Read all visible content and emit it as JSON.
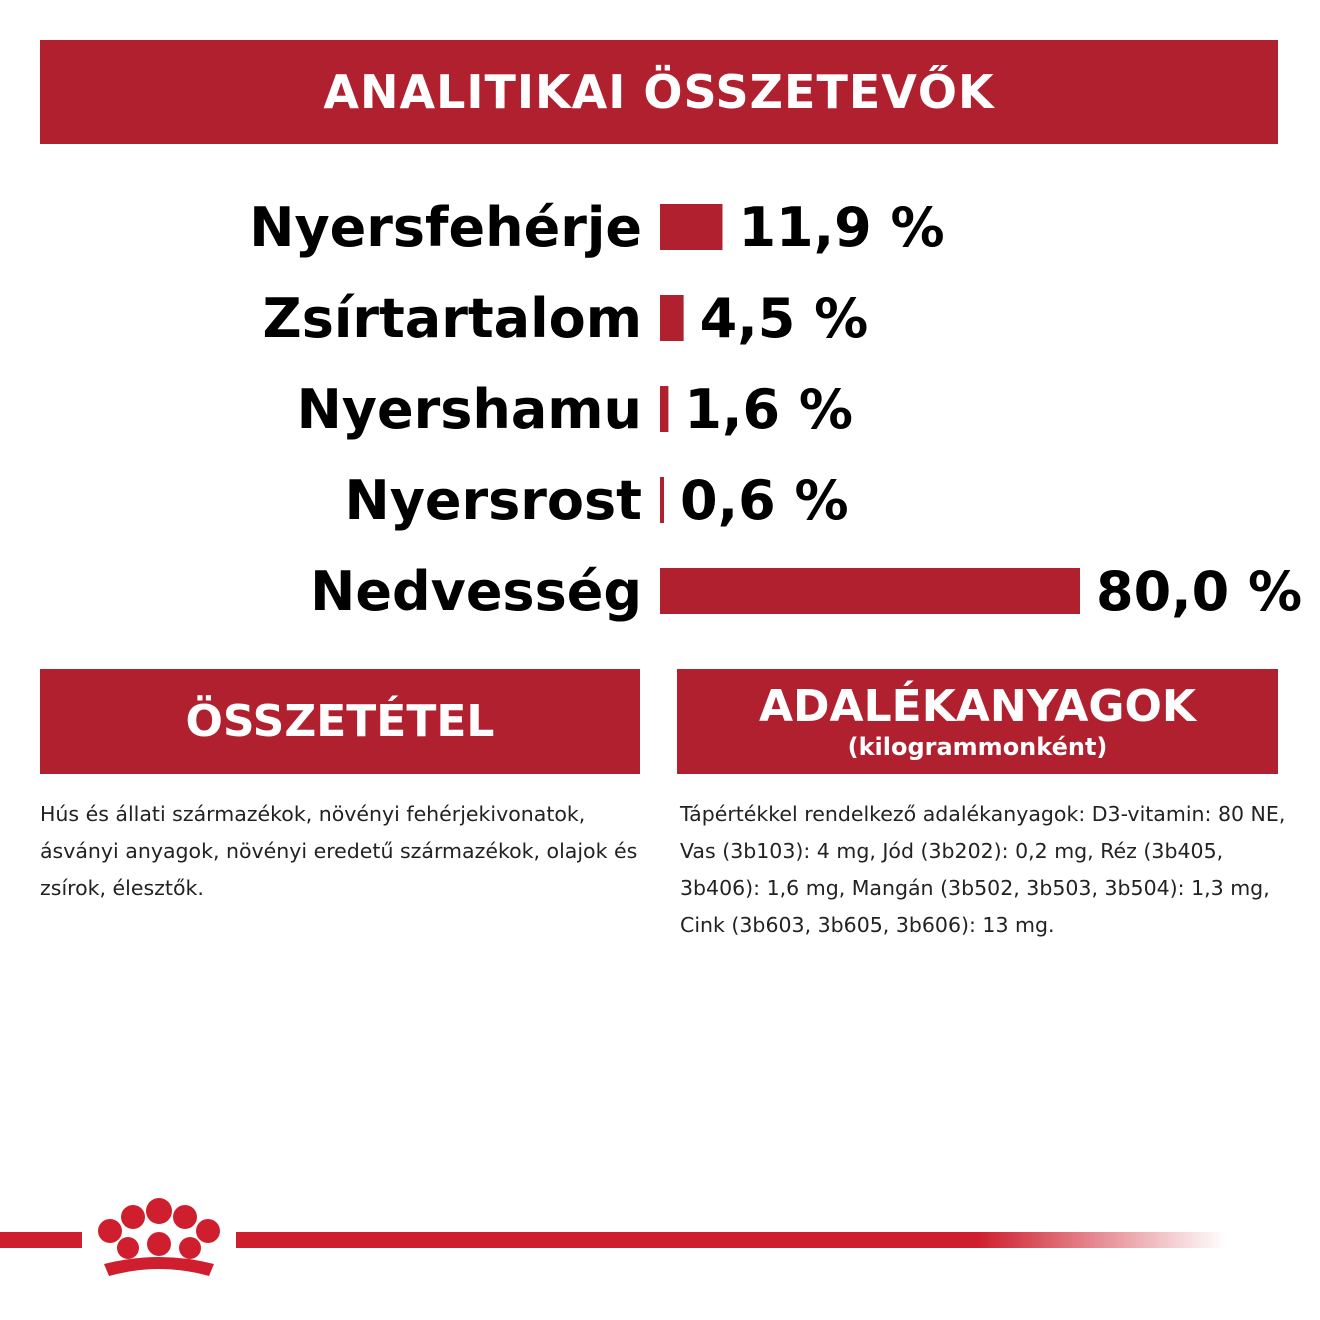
{
  "header": {
    "title": "ANALITIKAI ÖSSZETEVŐK"
  },
  "chart_data": {
    "type": "bar",
    "orientation": "horizontal",
    "categories": [
      "Nyersfehérje",
      "Zsírtartalom",
      "Nyershamu",
      "Nyersrost",
      "Nedvesség"
    ],
    "values": [
      11.9,
      4.5,
      1.6,
      0.6,
      80.0
    ],
    "value_labels": [
      "11,9 %",
      "4,5 %",
      "1,6 %",
      "0,6 %",
      "80,0 %"
    ],
    "bar_color": "#b0202f"
  },
  "composition": {
    "title": "ÖSSZETÉTEL",
    "text": "Hús és állati származékok, növényi fehérjekivonatok, ásványi anyagok, növényi eredetű származékok, olajok és zsírok, élesztők."
  },
  "additives": {
    "title": "ADALÉKANYAGOK",
    "subtitle": "(kilogrammonként)",
    "text": "Tápértékkel rendelkező adalékanyagok: D3-vitamin: 80 NE, Vas (3b103): 4 mg, Jód (3b202): 0,2 mg, Réz (3b405, 3b406): 1,6 mg, Mangán (3b502, 3b503, 3b504): 1,3 mg, Cink (3b603, 3b605, 3b606): 13 mg."
  },
  "colors": {
    "brand_red": "#b0202f",
    "text": "#000000"
  },
  "footer": {
    "logo_icon": "crown-icon"
  }
}
